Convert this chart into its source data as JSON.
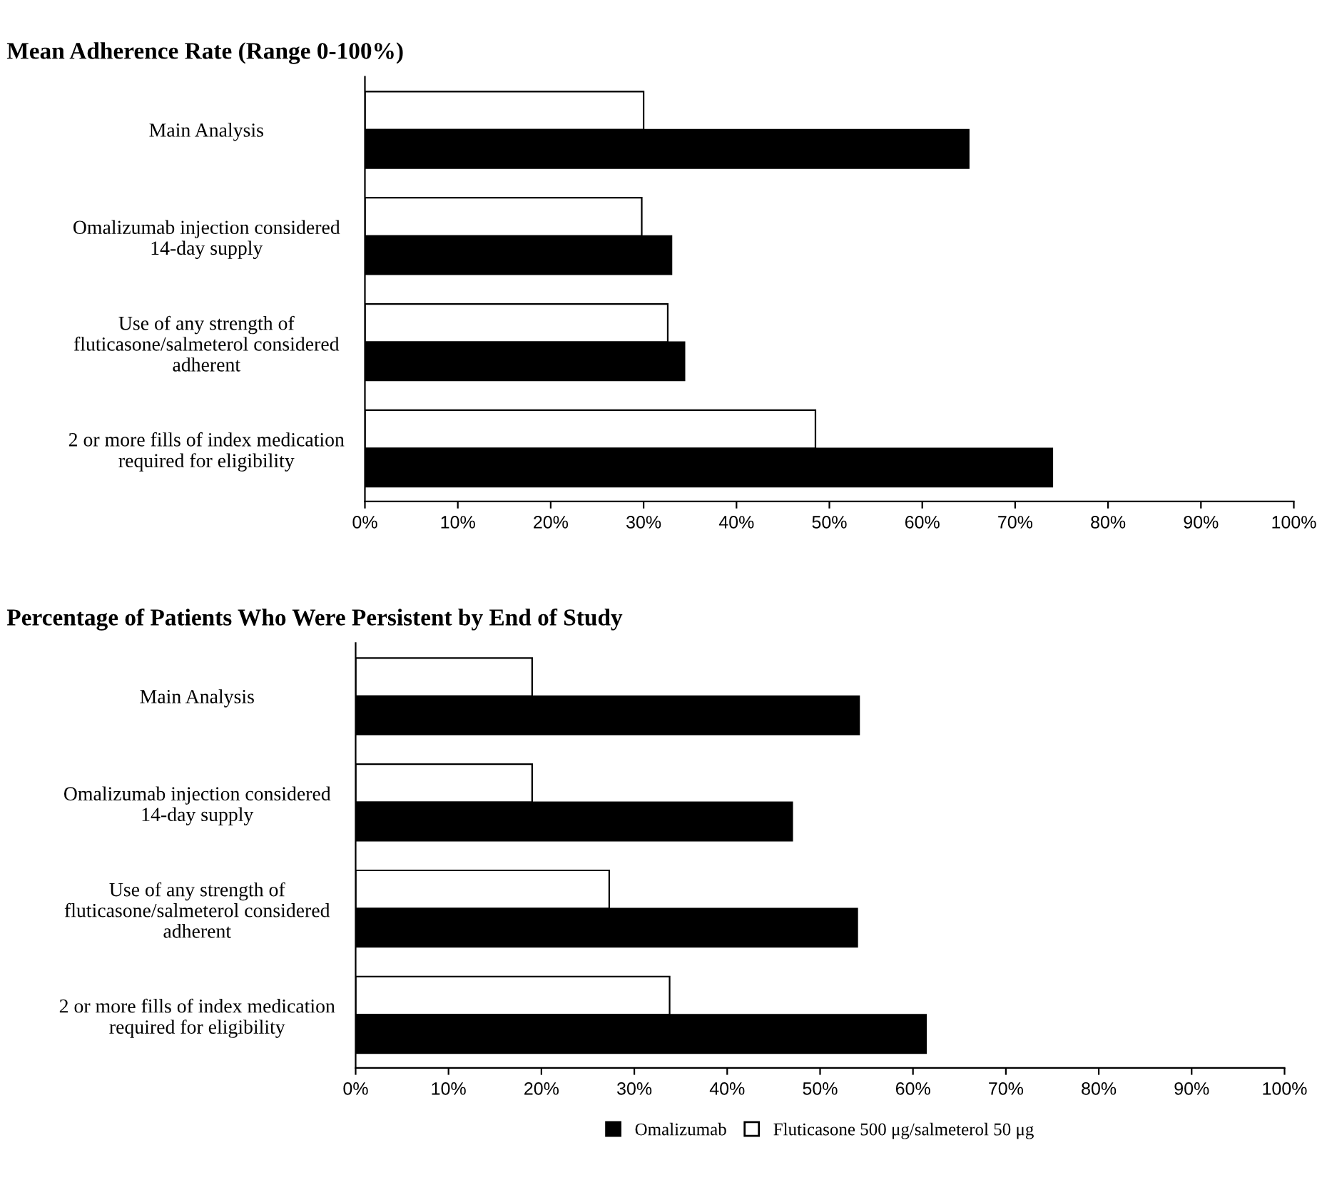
{
  "chart_data": [
    {
      "type": "bar",
      "orientation": "horizontal",
      "title": "Mean Adherence Rate (Range 0-100%)",
      "categories": [
        "Main Analysis",
        "Omalizumab injection considered\n14-day supply",
        "Use of any strength of\nfluticasone/salmeterol considered\nadherent",
        "2 or more fills of index medication\nrequired for eligibility"
      ],
      "series": [
        {
          "color": "#ffffff",
          "values": [
            30,
            29.8,
            32.6,
            48.5
          ]
        },
        {
          "color": "#000000",
          "values": [
            65,
            33,
            34.4,
            74
          ]
        }
      ],
      "xlim": [
        0,
        100
      ],
      "xticks": [
        {
          "value": 0,
          "label": "0%"
        },
        {
          "value": 10,
          "label": "10%"
        },
        {
          "value": 20,
          "label": "20%"
        },
        {
          "value": 30,
          "label": "30%"
        },
        {
          "value": 40,
          "label": "40%"
        },
        {
          "value": 50,
          "label": "50%"
        },
        {
          "value": 60,
          "label": "60%"
        },
        {
          "value": 70,
          "label": "70%"
        },
        {
          "value": 80,
          "label": "80%"
        },
        {
          "value": 90,
          "label": "90%"
        },
        {
          "value": 100,
          "label": "100%"
        }
      ],
      "grid": false
    },
    {
      "type": "bar",
      "orientation": "horizontal",
      "title": "Percentage of Patients Who Were Persistent by End of Study",
      "categories": [
        "Main Analysis",
        "Omalizumab injection considered\n14-day supply",
        "Use of any strength of\nfluticasone/salmeterol considered\nadherent",
        "2 or more fills of index medication\nrequired for eligibility"
      ],
      "series": [
        {
          "name": "Fluticasone 500 μg/salmeterol 50 μg",
          "color": "#ffffff",
          "values": [
            19,
            19,
            27.3,
            33.8
          ]
        },
        {
          "name": "Omalizumab",
          "color": "#000000",
          "values": [
            54.2,
            47,
            54,
            61.4
          ]
        }
      ],
      "xlim": [
        0,
        100
      ],
      "xticks": [
        {
          "value": 0,
          "label": "0%"
        },
        {
          "value": 10,
          "label": "10%"
        },
        {
          "value": 20,
          "label": "20%"
        },
        {
          "value": 30,
          "label": "30%"
        },
        {
          "value": 40,
          "label": "40%"
        },
        {
          "value": 50,
          "label": "50%"
        },
        {
          "value": 60,
          "label": "60%"
        },
        {
          "value": 70,
          "label": "70%"
        },
        {
          "value": 80,
          "label": "80%"
        },
        {
          "value": 90,
          "label": "90%"
        },
        {
          "value": 100,
          "label": "100%"
        }
      ],
      "grid": false,
      "legend": "bottom"
    }
  ]
}
